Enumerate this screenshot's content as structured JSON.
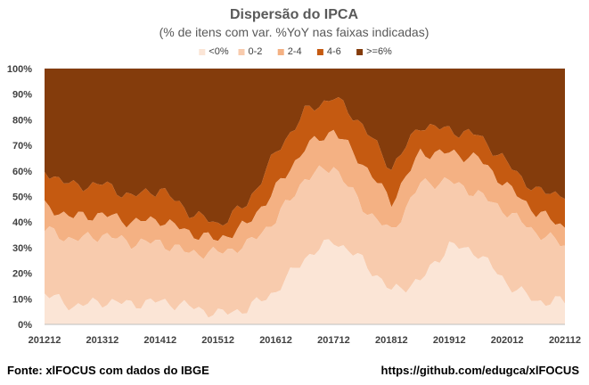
{
  "chart_data": {
    "type": "area",
    "stacked": true,
    "title": "Dispersão do IPCA",
    "subtitle": "(% de itens com var. %YoY nas faixas indicadas)",
    "xlabel": "",
    "ylabel": "",
    "ylim": [
      0,
      100
    ],
    "y_unit": "%",
    "y_ticks": [
      0,
      10,
      20,
      30,
      40,
      50,
      60,
      70,
      80,
      90,
      100
    ],
    "x_tick_labels": [
      "201212",
      "201312",
      "201412",
      "201512",
      "201612",
      "201712",
      "201812",
      "201912",
      "202012",
      "202112"
    ],
    "legend_position": "top",
    "grid": true,
    "x_keypoints": [
      "201212",
      "201306",
      "201312",
      "201406",
      "201412",
      "201506",
      "201512",
      "201606",
      "201612",
      "201706",
      "201712",
      "201806",
      "201812",
      "201906",
      "201912",
      "202006",
      "202012",
      "202106",
      "202112"
    ],
    "series": [
      {
        "name": "<0%",
        "color": "#fbe5d6",
        "values": [
          12,
          7,
          9,
          8,
          9,
          7,
          4,
          6,
          13,
          26,
          33,
          25,
          13,
          17,
          31,
          28,
          16,
          9,
          9
        ]
      },
      {
        "name": "0-2",
        "color": "#f8cbad",
        "values": [
          25,
          26,
          26,
          24,
          23,
          21,
          24,
          25,
          28,
          31,
          29,
          21,
          23,
          38,
          25,
          23,
          28,
          27,
          22
        ]
      },
      {
        "name": "2-4",
        "color": "#f4b183",
        "values": [
          9,
          9,
          8,
          8,
          9,
          8,
          5,
          8,
          12,
          12,
          14,
          17,
          12,
          12,
          11,
          14,
          10,
          8,
          7
        ]
      },
      {
        "name": "4-6",
        "color": "#c55a11",
        "values": [
          14,
          12,
          12,
          10,
          12,
          8,
          6,
          8,
          14,
          14,
          13,
          15,
          13,
          11,
          9,
          9,
          9,
          8,
          13
        ]
      },
      {
        "name": ">=6%",
        "color": "#843c0c",
        "values": [
          40,
          46,
          45,
          50,
          47,
          56,
          61,
          53,
          33,
          17,
          11,
          22,
          39,
          22,
          24,
          26,
          37,
          48,
          49
        ]
      }
    ]
  },
  "footer": {
    "source": "Fonte: xlFOCUS com dados do IBGE",
    "url": "https://github.com/edugca/xlFOCUS"
  }
}
